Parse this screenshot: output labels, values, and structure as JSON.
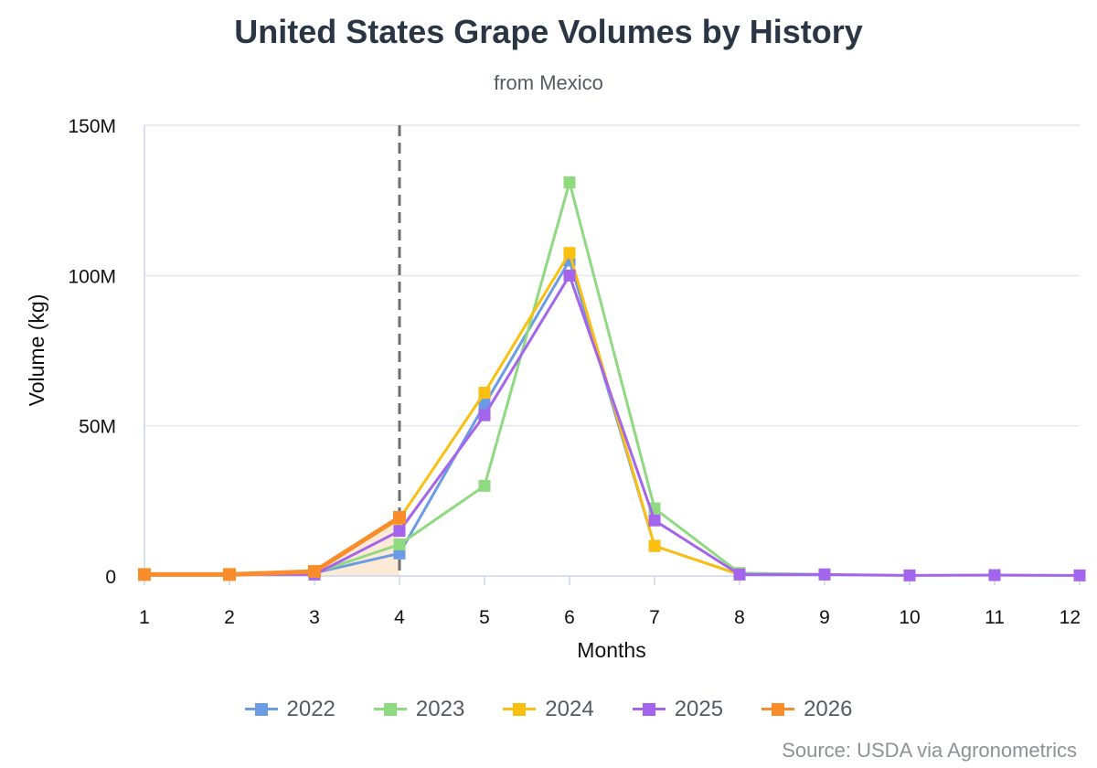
{
  "title": "United States Grape Volumes by History",
  "subtitle": "from Mexico",
  "source": "Source: USDA via Agronometrics",
  "chart_data": {
    "type": "line",
    "xlabel": "Months",
    "ylabel": "Volume (kg)",
    "x": [
      1,
      2,
      3,
      4,
      5,
      6,
      7,
      8,
      9,
      10,
      11,
      12
    ],
    "x_tick_labels": [
      "1",
      "2",
      "3",
      "4",
      "5",
      "6",
      "7",
      "8",
      "9",
      "10",
      "11",
      "12"
    ],
    "ylim": [
      0,
      150000000
    ],
    "y_ticks": [
      0,
      50000000,
      100000000,
      150000000
    ],
    "y_tick_labels": [
      "0",
      "50M",
      "100M",
      "150M"
    ],
    "grid": "horizontal",
    "current_month_marker": 4,
    "legend_position": "bottom",
    "series": [
      {
        "name": "2022",
        "color": "#6b9be3",
        "values": [
          500000,
          500000,
          1000000,
          7500000,
          57000000,
          105000000,
          10000000,
          500000,
          500000,
          null,
          null,
          null
        ]
      },
      {
        "name": "2023",
        "color": "#8fd980",
        "values": [
          500000,
          500000,
          1000000,
          10500000,
          30000000,
          131000000,
          22500000,
          1000000,
          500000,
          null,
          null,
          null
        ]
      },
      {
        "name": "2024",
        "color": "#fbbf0f",
        "values": [
          500000,
          500000,
          1500000,
          19000000,
          61000000,
          107500000,
          10000000,
          500000,
          null,
          null,
          null,
          null
        ]
      },
      {
        "name": "2025",
        "color": "#a465ec",
        "values": [
          500000,
          500000,
          500000,
          15000000,
          53500000,
          100000000,
          18500000,
          500000,
          500000,
          200000,
          300000,
          200000
        ]
      },
      {
        "name": "2026",
        "color": "#f98d2b",
        "values": [
          500000,
          500000,
          1500000,
          19500000,
          null,
          null,
          null,
          null,
          null,
          null,
          null,
          null
        ]
      }
    ]
  }
}
